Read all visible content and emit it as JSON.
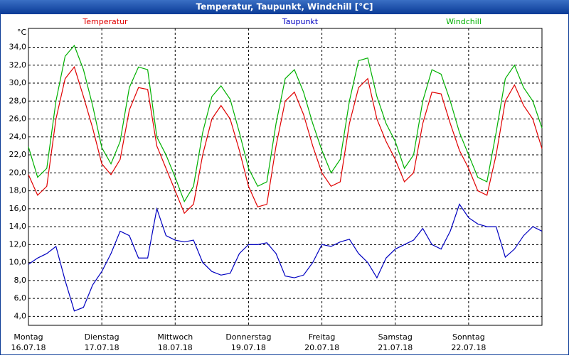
{
  "chart_data": {
    "type": "line",
    "title": "Temperatur, Taupunkt, Windchill [°C]",
    "y_unit": "°C",
    "x": [
      0,
      0.125,
      0.25,
      0.375,
      0.5,
      0.625,
      0.75,
      0.875,
      1,
      1.125,
      1.25,
      1.375,
      1.5,
      1.625,
      1.75,
      1.875,
      2,
      2.125,
      2.25,
      2.375,
      2.5,
      2.625,
      2.75,
      2.875,
      3,
      3.125,
      3.25,
      3.375,
      3.5,
      3.625,
      3.75,
      3.875,
      4,
      4.125,
      4.25,
      4.375,
      4.5,
      4.625,
      4.75,
      4.875,
      5,
      5.125,
      5.25,
      5.375,
      5.5,
      5.625,
      5.75,
      5.875,
      6,
      6.125,
      6.25,
      6.375,
      6.5,
      6.625,
      6.75,
      6.875,
      7
    ],
    "xlim": [
      0,
      7
    ],
    "xticks": [
      {
        "value": 0,
        "label": "Montag",
        "date": "16.07.18"
      },
      {
        "value": 1,
        "label": "Dienstag",
        "date": "17.07.18"
      },
      {
        "value": 2,
        "label": "Mittwoch",
        "date": "18.07.18"
      },
      {
        "value": 3,
        "label": "Donnerstag",
        "date": "19.07.18"
      },
      {
        "value": 4,
        "label": "Freitag",
        "date": "20.07.18"
      },
      {
        "value": 5,
        "label": "Samstag",
        "date": "21.07.18"
      },
      {
        "value": 6,
        "label": "Sonntag",
        "date": "22.07.18"
      }
    ],
    "ylim": [
      3,
      36.1
    ],
    "yticks": [
      {
        "value": 4,
        "label": "4,0"
      },
      {
        "value": 6,
        "label": "6,0"
      },
      {
        "value": 8,
        "label": "8,0"
      },
      {
        "value": 10,
        "label": "10,0"
      },
      {
        "value": 12,
        "label": "12,0"
      },
      {
        "value": 14,
        "label": "14,0"
      },
      {
        "value": 16,
        "label": "16,0"
      },
      {
        "value": 18,
        "label": "18,0"
      },
      {
        "value": 20,
        "label": "20,0"
      },
      {
        "value": 22,
        "label": "22,0"
      },
      {
        "value": 24,
        "label": "24,0"
      },
      {
        "value": 26,
        "label": "26,0"
      },
      {
        "value": 28,
        "label": "28,0"
      },
      {
        "value": 30,
        "label": "30,0"
      },
      {
        "value": 32,
        "label": "32,0"
      },
      {
        "value": 34,
        "label": "34,0"
      }
    ],
    "grid": true,
    "series": [
      {
        "name": "Temperatur",
        "color": "#e00000",
        "values": [
          19.8,
          17.5,
          18.5,
          26,
          30.5,
          31.8,
          28.5,
          25,
          21,
          19.8,
          21.5,
          27,
          29.5,
          29.3,
          23,
          20.5,
          18,
          15.5,
          16.5,
          22,
          26,
          27.5,
          26,
          22.5,
          18.5,
          16.2,
          16.5,
          23,
          28,
          29,
          26.5,
          23,
          20,
          18.5,
          19,
          25.5,
          29.5,
          30.5,
          26,
          23.5,
          21.5,
          19,
          20,
          25.5,
          29,
          28.8,
          25.5,
          22.5,
          20.5,
          18,
          17.5,
          22,
          28,
          29.8,
          27.5,
          26,
          22.7
        ]
      },
      {
        "name": "Taupunkt",
        "color": "#0000c0",
        "values": [
          9.8,
          10.5,
          11,
          11.8,
          8,
          4.6,
          5,
          7.5,
          9,
          11,
          13.5,
          13,
          10.5,
          10.5,
          16,
          13,
          12.5,
          12.3,
          12.5,
          10,
          9,
          8.6,
          8.8,
          11,
          12,
          12,
          12.2,
          11,
          8.5,
          8.3,
          8.6,
          10,
          12,
          11.8,
          12.3,
          12.6,
          11,
          10,
          8.3,
          10.5,
          11.5,
          12,
          12.5,
          13.8,
          12,
          11.5,
          13.5,
          16.5,
          15,
          14.3,
          14,
          14,
          10.6,
          11.5,
          13,
          14,
          13.5
        ]
      },
      {
        "name": "Windchill",
        "color": "#00b000",
        "values": [
          22.9,
          19.5,
          20.5,
          28,
          33,
          34.2,
          31.5,
          27.5,
          22.8,
          21,
          23.5,
          29.5,
          31.8,
          31.5,
          24,
          22,
          19.5,
          16.8,
          18.5,
          24.5,
          28.5,
          29.7,
          28.2,
          24.5,
          20.5,
          18.5,
          19,
          25.5,
          30.5,
          31.5,
          29,
          25.5,
          22.5,
          20,
          21.5,
          28,
          32.5,
          32.8,
          28.5,
          25.5,
          23.5,
          20.5,
          22,
          28,
          31.5,
          31,
          28,
          24.5,
          22,
          19.5,
          19,
          24.5,
          30.5,
          32,
          29.5,
          28,
          25
        ]
      }
    ]
  }
}
